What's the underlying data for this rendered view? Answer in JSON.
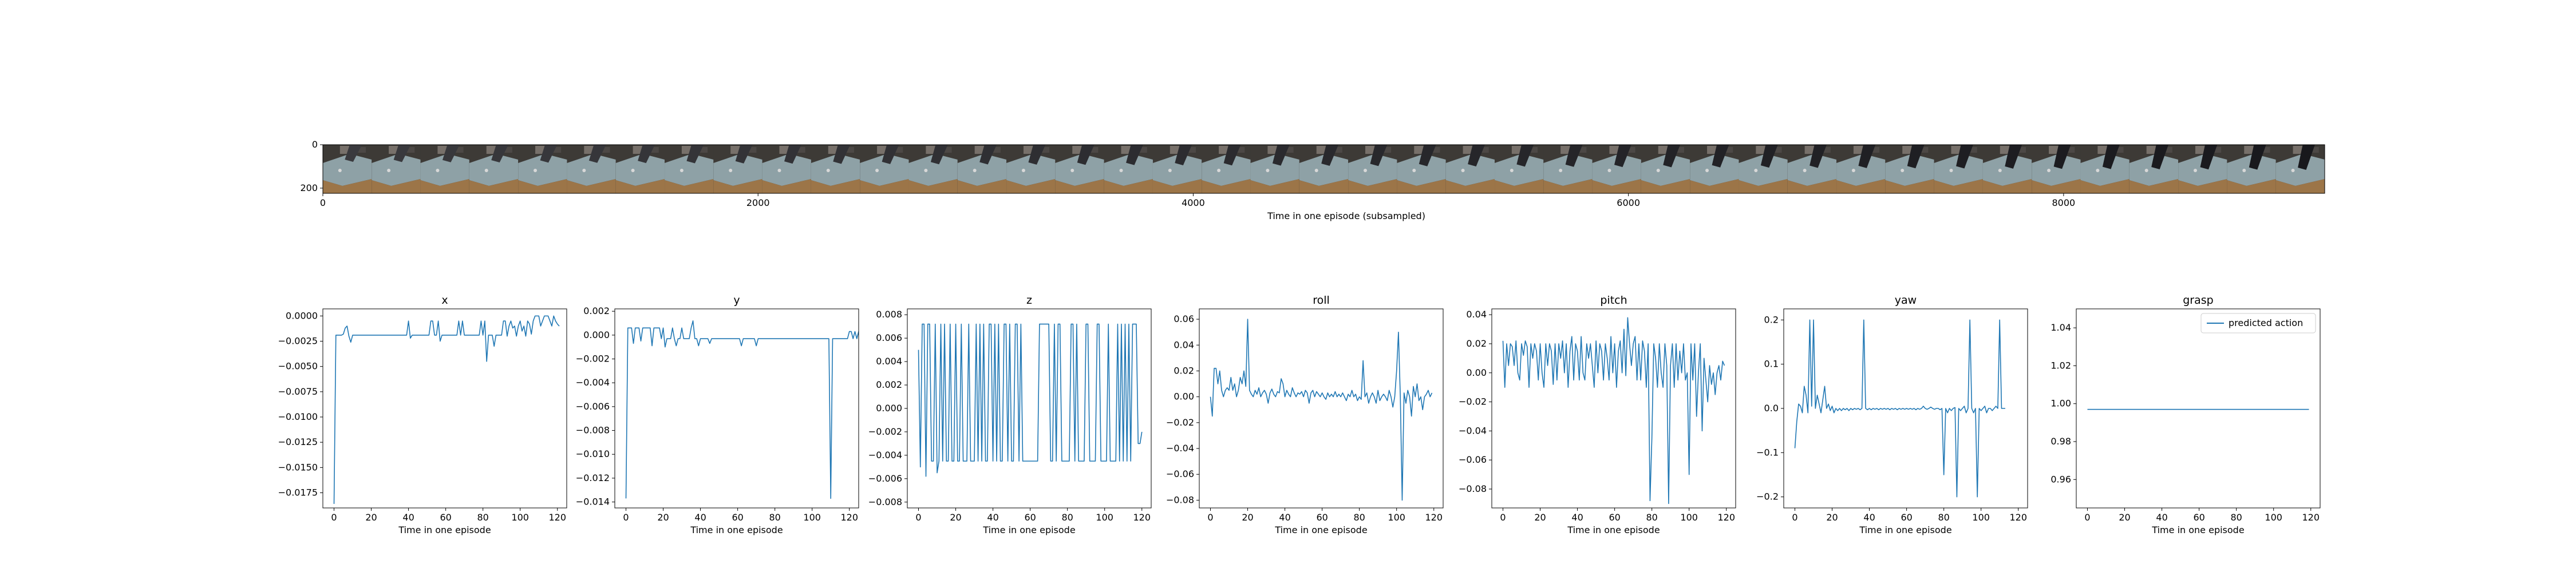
{
  "figure": {
    "strip": {
      "xlabel": "Time in one episode (subsampled)",
      "x_ticks": [
        0,
        2000,
        4000,
        6000,
        8000
      ],
      "y_ticks": [
        0,
        200
      ],
      "xlim": [
        0,
        9200
      ],
      "ylim": [
        0,
        224
      ],
      "frames": 41
    },
    "line_color": "#1f77b4",
    "legend_label": "predicted action"
  },
  "chart_data": [
    {
      "type": "line",
      "title": "x",
      "xlabel": "Time in one episode",
      "xlim": [
        -6,
        125
      ],
      "ylim": [
        -0.019,
        0.0007
      ],
      "x_ticks": [
        0,
        20,
        40,
        60,
        80,
        100,
        120
      ],
      "y_ticks": [
        0.0,
        -0.0025,
        -0.005,
        -0.0075,
        -0.01,
        -0.0125,
        -0.015,
        -0.0175
      ],
      "y_tick_labels": [
        "0.0000",
        "−0.0025",
        "−0.0050",
        "−0.0075",
        "−0.0100",
        "−0.0125",
        "−0.0150",
        "−0.0175"
      ],
      "series": [
        {
          "values": [
            -0.0186,
            -0.0019,
            -0.0019,
            -0.0019,
            -0.0019,
            -0.0018,
            -0.0012,
            -0.001,
            -0.002,
            -0.0026,
            -0.0019,
            -0.0019,
            -0.0019,
            -0.0019,
            -0.0019,
            -0.0019,
            -0.0019,
            -0.0019,
            -0.0019,
            -0.0019,
            -0.0019,
            -0.0019,
            -0.0019,
            -0.0019,
            -0.0019,
            -0.0019,
            -0.0019,
            -0.0019,
            -0.0019,
            -0.0019,
            -0.0019,
            -0.0019,
            -0.0019,
            -0.0019,
            -0.0019,
            -0.0019,
            -0.0019,
            -0.0019,
            -0.0019,
            -0.0019,
            -0.0005,
            -0.0022,
            -0.0019,
            -0.0019,
            -0.0019,
            -0.0019,
            -0.0019,
            -0.0019,
            -0.0019,
            -0.0019,
            -0.0019,
            -0.0019,
            -0.0005,
            -0.0005,
            -0.0019,
            -0.0019,
            -0.0005,
            -0.0025,
            -0.0019,
            -0.0019,
            -0.0019,
            -0.0019,
            -0.0019,
            -0.0019,
            -0.0019,
            -0.0019,
            -0.0019,
            -0.0005,
            -0.0019,
            -0.0005,
            -0.0019,
            -0.0019,
            -0.0019,
            -0.0019,
            -0.0019,
            -0.0019,
            -0.0019,
            -0.0019,
            -0.0019,
            -0.0005,
            -0.0019,
            -0.0005,
            -0.0045,
            -0.0019,
            -0.0019,
            -0.0019,
            -0.003,
            -0.0019,
            -0.0019,
            -0.0019,
            -0.0019,
            -0.0005,
            -0.0005,
            -0.002,
            -0.001,
            -0.0005,
            -0.0012,
            -0.001,
            -0.002,
            -0.001,
            -0.0005,
            -0.0015,
            -0.001,
            -0.002,
            -0.0005,
            -0.0008,
            -0.0018,
            -0.0005,
            0.0,
            0.0,
            0.0,
            -0.001,
            -0.0005,
            0.0,
            0.0,
            0.0,
            -0.0005,
            -0.001,
            0.0,
            -0.0005,
            -0.0008,
            -0.001
          ]
        }
      ]
    },
    {
      "type": "line",
      "title": "y",
      "xlabel": "Time in one episode",
      "xlim": [
        -6,
        125
      ],
      "ylim": [
        -0.0145,
        0.0022
      ],
      "x_ticks": [
        0,
        20,
        40,
        60,
        80,
        100,
        120
      ],
      "y_ticks": [
        0.002,
        0.0,
        -0.002,
        -0.004,
        -0.006,
        -0.008,
        -0.01,
        -0.012,
        -0.014
      ],
      "y_tick_labels": [
        "0.002",
        "0.000",
        "−0.002",
        "−0.004",
        "−0.006",
        "−0.008",
        "−0.010",
        "−0.012",
        "−0.014"
      ],
      "series": [
        {
          "values": [
            -0.0137,
            0.0006,
            0.0006,
            0.0006,
            -0.0007,
            0.0006,
            0.0006,
            0.0006,
            -0.0005,
            0.0006,
            0.0006,
            0.0006,
            0.0006,
            0.0006,
            -0.0009,
            0.0006,
            0.0006,
            0.0006,
            0.0006,
            -0.0003,
            0.0006,
            -0.001,
            -0.0003,
            -0.0003,
            -0.0003,
            0.0006,
            -0.0003,
            -0.0009,
            -0.0003,
            -0.0003,
            0.0006,
            -0.0003,
            -0.0003,
            -0.0003,
            -0.0003,
            0.0006,
            0.0012,
            -0.0003,
            -0.0003,
            -0.0009,
            -0.0003,
            -0.0003,
            -0.0003,
            -0.0003,
            -0.0003,
            -0.0007,
            -0.0003,
            -0.0003,
            -0.0003,
            -0.0003,
            -0.0003,
            -0.0003,
            -0.0003,
            -0.0003,
            -0.0003,
            -0.0003,
            -0.0003,
            -0.0003,
            -0.0003,
            -0.0003,
            -0.0003,
            -0.0003,
            -0.0009,
            -0.0003,
            -0.0003,
            -0.0003,
            -0.0003,
            -0.0003,
            -0.0003,
            -0.0003,
            -0.0009,
            -0.0003,
            -0.0003,
            -0.0003,
            -0.0003,
            -0.0003,
            -0.0003,
            -0.0003,
            -0.0003,
            -0.0003,
            -0.0003,
            -0.0003,
            -0.0003,
            -0.0003,
            -0.0003,
            -0.0003,
            -0.0003,
            -0.0003,
            -0.0003,
            -0.0003,
            -0.0003,
            -0.0003,
            -0.0003,
            -0.0003,
            -0.0003,
            -0.0003,
            -0.0003,
            -0.0003,
            -0.0003,
            -0.0003,
            -0.0003,
            -0.0003,
            -0.0003,
            -0.0003,
            -0.0003,
            -0.0003,
            -0.0003,
            -0.0003,
            -0.0003,
            -0.0003,
            -0.0137,
            -0.0003,
            -0.0003,
            -0.0003,
            -0.0003,
            -0.0003,
            -0.0003,
            -0.0003,
            -0.0003,
            -0.0003,
            0.0003,
            0.0003,
            -0.0003,
            0.0003,
            -0.0003,
            0.0003,
            -0.0003,
            0.0003
          ]
        }
      ]
    },
    {
      "type": "line",
      "title": "z",
      "xlabel": "Time in one episode",
      "xlim": [
        -6,
        125
      ],
      "ylim": [
        -0.0085,
        0.0085
      ],
      "x_ticks": [
        0,
        20,
        40,
        60,
        80,
        100,
        120
      ],
      "y_ticks": [
        0.008,
        0.006,
        0.004,
        0.002,
        0.0,
        -0.002,
        -0.004,
        -0.006,
        -0.008
      ],
      "y_tick_labels": [
        "0.008",
        "0.006",
        "0.004",
        "0.002",
        "0.000",
        "−0.002",
        "−0.004",
        "−0.006",
        "−0.008"
      ],
      "series": [
        {
          "values": [
            0.005,
            -0.005,
            0.0072,
            0.0072,
            -0.0058,
            0.0072,
            0.0072,
            -0.0045,
            -0.0045,
            0.0072,
            -0.0055,
            -0.0045,
            0.0072,
            -0.0045,
            0.0072,
            -0.0045,
            -0.0045,
            0.0072,
            -0.0045,
            -0.0045,
            0.0072,
            -0.0045,
            -0.0045,
            0.0072,
            -0.0045,
            -0.0045,
            -0.0045,
            0.0072,
            -0.0045,
            -0.0045,
            -0.0045,
            0.0072,
            -0.0045,
            0.0072,
            -0.0045,
            0.0072,
            -0.0045,
            -0.0045,
            0.0072,
            0.0072,
            -0.0045,
            0.0072,
            -0.0045,
            0.0072,
            -0.0045,
            -0.0045,
            0.0072,
            0.0072,
            -0.0045,
            0.0072,
            -0.0045,
            -0.0045,
            0.0072,
            0.0072,
            -0.0045,
            0.0072,
            -0.0045,
            -0.0045,
            -0.0045,
            -0.0045,
            -0.0045,
            -0.0045,
            -0.0045,
            -0.0045,
            -0.0045,
            0.0072,
            0.0072,
            0.0072,
            0.0072,
            0.0072,
            0.0072,
            -0.0045,
            -0.0045,
            0.0072,
            -0.0045,
            0.0072,
            0.0072,
            -0.0045,
            -0.0045,
            -0.0045,
            -0.0045,
            -0.0045,
            0.0072,
            0.0072,
            -0.0045,
            0.0072,
            -0.0045,
            -0.0045,
            -0.0045,
            -0.0045,
            0.0072,
            0.0072,
            -0.0045,
            -0.0045,
            -0.0045,
            -0.0045,
            0.0072,
            0.0072,
            -0.0045,
            -0.0045,
            -0.0045,
            -0.0045,
            0.0072,
            -0.0045,
            -0.0045,
            -0.0045,
            -0.0045,
            0.0072,
            -0.0045,
            0.0072,
            -0.0045,
            0.0072,
            -0.0045,
            0.0072,
            -0.0045,
            0.0072,
            0.0072,
            0.0072,
            -0.003,
            -0.003,
            -0.002
          ]
        }
      ]
    },
    {
      "type": "line",
      "title": "roll",
      "xlabel": "Time in one episode",
      "xlim": [
        -6,
        125
      ],
      "ylim": [
        -0.086,
        0.068
      ],
      "x_ticks": [
        0,
        20,
        40,
        60,
        80,
        100,
        120
      ],
      "y_ticks": [
        0.06,
        0.04,
        0.02,
        0.0,
        -0.02,
        -0.04,
        -0.06,
        -0.08
      ],
      "y_tick_labels": [
        "0.06",
        "0.04",
        "0.02",
        "0.00",
        "−0.02",
        "−0.04",
        "−0.06",
        "−0.08"
      ],
      "series": [
        {
          "values": [
            0.0,
            -0.015,
            0.022,
            0.022,
            0.01,
            0.02,
            0.005,
            0.0,
            0.005,
            0.007,
            0.005,
            0.015,
            0.005,
            0.01,
            0.0,
            0.005,
            0.015,
            0.01,
            0.02,
            0.008,
            0.06,
            0.005,
            0.002,
            0.0,
            0.005,
            0.002,
            0.007,
            0.0,
            0.003,
            0.005,
            0.002,
            -0.005,
            0.003,
            0.006,
            0.002,
            0.0,
            0.004,
            0.003,
            0.014,
            0.01,
            0.0,
            0.005,
            0.002,
            0.0,
            0.007,
            0.003,
            0.0,
            0.003,
            0.002,
            0.004,
            0.0,
            0.005,
            0.003,
            -0.005,
            0.003,
            0.005,
            0.0,
            0.004,
            0.002,
            0.0,
            0.003,
            0.0,
            -0.002,
            0.003,
            0.0,
            0.002,
            0.0,
            0.004,
            0.0,
            0.002,
            0.0,
            0.003,
            0.0,
            -0.003,
            0.002,
            0.0,
            0.005,
            0.0,
            0.002,
            -0.003,
            0.0,
            -0.002,
            0.028,
            0.0,
            0.003,
            -0.005,
            0.0,
            0.003,
            0.0,
            -0.005,
            0.005,
            -0.003,
            0.0,
            0.002,
            0.0,
            -0.003,
            0.005,
            0.0,
            -0.008,
            0.0,
            0.02,
            0.05,
            0.0,
            -0.08,
            0.003,
            -0.005,
            0.005,
            0.0,
            -0.015,
            0.008,
            0.0,
            0.01,
            -0.003,
            0.0,
            -0.01,
            0.0,
            0.002,
            0.005,
            0.0,
            0.003
          ]
        }
      ]
    },
    {
      "type": "line",
      "title": "pitch",
      "xlabel": "Time in one episode",
      "xlim": [
        -6,
        125
      ],
      "ylim": [
        -0.093,
        0.044
      ],
      "x_ticks": [
        0,
        20,
        40,
        60,
        80,
        100,
        120
      ],
      "y_ticks": [
        0.04,
        0.02,
        0.0,
        -0.02,
        -0.04,
        -0.06,
        -0.08
      ],
      "y_tick_labels": [
        "0.04",
        "0.02",
        "0.00",
        "−0.02",
        "−0.04",
        "−0.06",
        "−0.08"
      ],
      "series": [
        {
          "values": [
            0.022,
            -0.01,
            0.02,
            0.005,
            0.02,
            0.018,
            0.005,
            0.022,
            0.0,
            -0.005,
            0.02,
            0.012,
            0.022,
            0.018,
            -0.01,
            0.02,
            0.01,
            0.02,
            0.015,
            -0.005,
            0.02,
            0.0,
            -0.01,
            0.02,
            0.005,
            0.02,
            0.015,
            -0.008,
            0.02,
            -0.005,
            0.02,
            0.01,
            0.022,
            0.0,
            0.02,
            -0.01,
            0.015,
            0.025,
            -0.005,
            0.02,
            0.015,
            -0.005,
            0.025,
            0.0,
            -0.005,
            0.02,
            0.01,
            0.02,
            0.005,
            -0.01,
            0.022,
            0.0,
            0.02,
            0.015,
            -0.005,
            0.02,
            0.01,
            -0.005,
            0.025,
            0.0,
            0.02,
            -0.01,
            0.015,
            0.022,
            0.0,
            0.03,
            -0.002,
            0.038,
            0.02,
            0.005,
            0.02,
            0.025,
            -0.005,
            0.02,
            -0.005,
            0.022,
            0.015,
            -0.01,
            0.02,
            -0.088,
            -0.045,
            0.02,
            0.01,
            -0.01,
            0.02,
            0.0,
            -0.01,
            0.02,
            0.005,
            -0.09,
            0.005,
            0.02,
            -0.01,
            0.02,
            -0.005,
            0.015,
            0.0,
            0.02,
            -0.005,
            0.0,
            -0.07,
            0.02,
            -0.005,
            0.02,
            -0.03,
            0.0,
            0.02,
            -0.04,
            0.01,
            -0.005,
            -0.02,
            0.005,
            -0.008,
            0.0,
            -0.015,
            0.0,
            0.005,
            -0.005,
            0.008,
            0.005
          ]
        }
      ]
    },
    {
      "type": "line",
      "title": "yaw",
      "xlabel": "Time in one episode",
      "xlim": [
        -6,
        125
      ],
      "ylim": [
        -0.225,
        0.225
      ],
      "x_ticks": [
        0,
        20,
        40,
        60,
        80,
        100,
        120
      ],
      "y_ticks": [
        0.2,
        0.1,
        0.0,
        -0.1,
        -0.2
      ],
      "y_tick_labels": [
        "0.2",
        "0.1",
        "0.0",
        "−0.1",
        "−0.2"
      ],
      "series": [
        {
          "values": [
            -0.09,
            -0.03,
            0.01,
            0.005,
            -0.01,
            0.05,
            0.03,
            -0.01,
            0.2,
            0.005,
            0.2,
            0.0,
            0.03,
            0.01,
            -0.01,
            0.02,
            0.05,
            0.0,
            0.01,
            -0.005,
            0.005,
            -0.01,
            0.0,
            -0.005,
            0.0,
            -0.005,
            0.0,
            -0.003,
            0.0,
            -0.005,
            0.0,
            -0.003,
            0.0,
            -0.002,
            0.0,
            -0.003,
            0.0,
            0.2,
            0.0,
            -0.003,
            0.0,
            -0.003,
            0.0,
            -0.002,
            0.0,
            -0.003,
            0.0,
            -0.002,
            0.0,
            -0.002,
            0.0,
            -0.003,
            0.0,
            -0.002,
            0.0,
            -0.003,
            0.0,
            -0.002,
            0.0,
            -0.002,
            0.0,
            -0.002,
            0.0,
            -0.002,
            0.0,
            -0.003,
            0.0,
            -0.002,
            0.0,
            0.005,
            0.0,
            -0.002,
            0.0,
            0.003,
            0.0,
            -0.002,
            0.0,
            0.0,
            -0.003,
            0.0,
            -0.15,
            0.0,
            -0.01,
            0.0,
            -0.005,
            0.0,
            0.002,
            -0.2,
            0.0,
            -0.005,
            0.0,
            0.005,
            -0.01,
            0.0,
            0.2,
            0.0,
            -0.01,
            0.0,
            -0.2,
            0.0,
            -0.005,
            0.0,
            0.005,
            -0.01,
            0.0,
            0.0,
            -0.005,
            0.0,
            0.005,
            0.0,
            0.2,
            0.0,
            0.0,
            0.0
          ]
        }
      ]
    },
    {
      "type": "line",
      "title": "grasp",
      "xlabel": "Time in one episode",
      "xlim": [
        -6,
        125
      ],
      "ylim": [
        0.945,
        1.05
      ],
      "x_ticks": [
        0,
        20,
        40,
        60,
        80,
        100,
        120
      ],
      "y_ticks": [
        1.04,
        1.02,
        1.0,
        0.98,
        0.96
      ],
      "y_tick_labels": [
        "1.04",
        "1.02",
        "1.00",
        "0.98",
        "0.96"
      ],
      "legend": {
        "location": "upper right",
        "entries": [
          "predicted action"
        ]
      },
      "series": [
        {
          "name": "predicted action",
          "constant": 0.997,
          "x_range": [
            0,
            119
          ]
        }
      ]
    }
  ]
}
